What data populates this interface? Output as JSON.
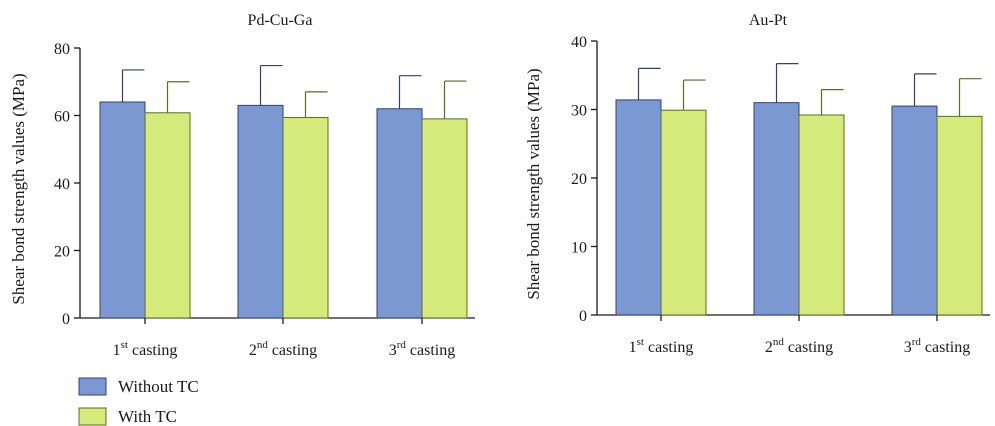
{
  "colors": {
    "without_tc": "#7b98d2",
    "without_tc_stroke": "#2f3f7a",
    "with_tc": "#d5ea7a",
    "with_tc_stroke": "#5c6b22",
    "axis": "#1a1a1a"
  },
  "legend": {
    "items": [
      {
        "name": "Without TC",
        "color_key": "without_tc"
      },
      {
        "name": "With TC",
        "color_key": "with_tc"
      }
    ]
  },
  "chart_data": [
    {
      "type": "bar",
      "title": "Pd-Cu-Ga",
      "ylabel": "Shear bond strength values (MPa)",
      "xlabel": "",
      "ylim": [
        0,
        80
      ],
      "yticks": [
        0,
        20,
        40,
        60,
        80
      ],
      "grid": false,
      "categories": [
        {
          "base": "1",
          "sup": "st",
          "rest": " casting"
        },
        {
          "base": "2",
          "sup": "nd",
          "rest": " casting"
        },
        {
          "base": "3",
          "sup": "rd",
          "rest": " casting"
        }
      ],
      "series": [
        {
          "name": "Without TC",
          "values": [
            64.0,
            63.0,
            62.0
          ],
          "error": [
            9.5,
            11.8,
            9.8
          ]
        },
        {
          "name": "With TC",
          "values": [
            60.8,
            59.4,
            59.0
          ],
          "error": [
            9.2,
            7.6,
            11.2
          ]
        }
      ]
    },
    {
      "type": "bar",
      "title": "Au-Pt",
      "ylabel": "Shear bond strength values (MPa)",
      "xlabel": "",
      "ylim": [
        0,
        40
      ],
      "yticks": [
        0,
        10,
        20,
        30,
        40
      ],
      "grid": false,
      "categories": [
        {
          "base": "1",
          "sup": "st",
          "rest": " casting"
        },
        {
          "base": "2",
          "sup": "nd",
          "rest": " casting"
        },
        {
          "base": "3",
          "sup": "rd",
          "rest": " casting"
        }
      ],
      "series": [
        {
          "name": "Without TC",
          "values": [
            31.4,
            31.0,
            30.5
          ],
          "error": [
            4.6,
            5.7,
            4.7
          ]
        },
        {
          "name": "With TC",
          "values": [
            29.9,
            29.2,
            29.0
          ],
          "error": [
            4.4,
            3.7,
            5.5
          ]
        }
      ]
    }
  ]
}
